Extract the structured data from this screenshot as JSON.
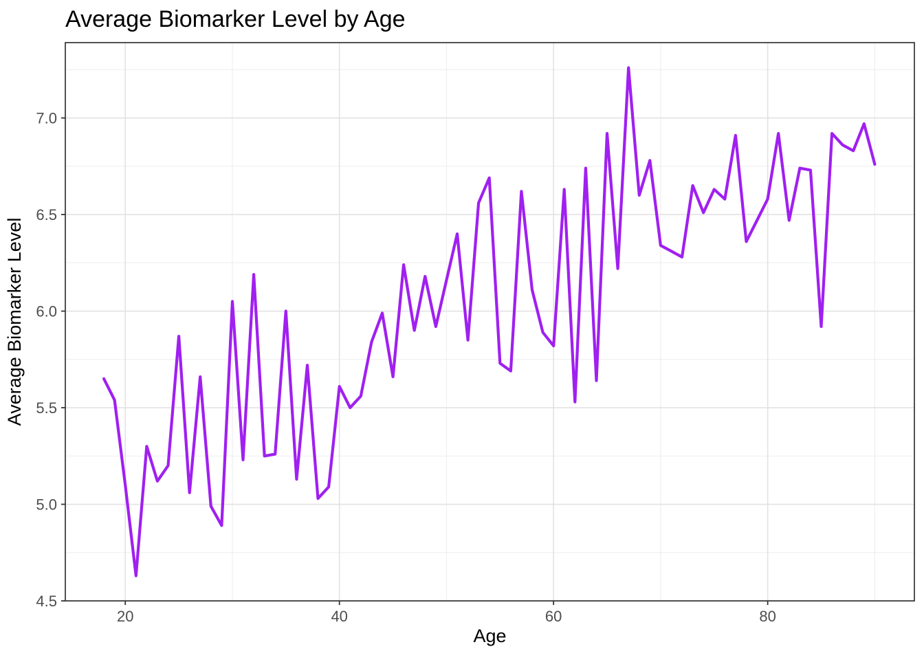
{
  "chart_data": {
    "type": "line",
    "title": "Average Biomarker Level by Age",
    "xlabel": "Age",
    "ylabel": "Average Biomarker Level",
    "x": [
      18,
      19,
      20,
      21,
      22,
      23,
      24,
      25,
      26,
      27,
      28,
      29,
      30,
      31,
      32,
      33,
      34,
      35,
      36,
      37,
      38,
      39,
      40,
      41,
      42,
      43,
      44,
      45,
      46,
      47,
      48,
      49,
      50,
      51,
      52,
      53,
      54,
      55,
      56,
      57,
      58,
      59,
      60,
      61,
      62,
      63,
      64,
      65,
      66,
      67,
      68,
      69,
      70,
      71,
      72,
      73,
      74,
      75,
      76,
      77,
      78,
      79,
      80,
      81,
      82,
      83,
      84,
      85,
      86,
      87,
      88,
      89,
      90
    ],
    "y": [
      5.65,
      5.54,
      5.1,
      4.63,
      5.3,
      5.12,
      5.2,
      5.87,
      5.06,
      5.66,
      4.99,
      4.89,
      6.05,
      5.23,
      6.19,
      5.25,
      5.26,
      6.0,
      5.13,
      5.72,
      5.03,
      5.09,
      5.61,
      5.5,
      5.56,
      5.84,
      5.99,
      5.66,
      6.24,
      5.9,
      6.18,
      5.92,
      6.16,
      6.4,
      5.85,
      6.56,
      6.69,
      5.73,
      5.69,
      6.62,
      6.11,
      5.89,
      5.82,
      6.63,
      5.53,
      6.74,
      5.64,
      6.92,
      6.22,
      7.26,
      6.6,
      6.78,
      6.34,
      6.31,
      6.28,
      6.65,
      6.51,
      6.63,
      6.58,
      6.91,
      6.36,
      6.47,
      6.58,
      6.92,
      6.47,
      6.74,
      6.73,
      5.92,
      6.92,
      6.86,
      6.83,
      6.97,
      6.76
    ],
    "xlim": [
      14.4,
      93.7
    ],
    "ylim": [
      4.5,
      7.39
    ],
    "x_major_ticks": {
      "values": [
        20,
        40,
        60,
        80
      ],
      "labels": [
        "20",
        "40",
        "60",
        "80"
      ]
    },
    "y_major_ticks": {
      "values": [
        4.5,
        5.0,
        5.5,
        6.0,
        6.5,
        7.0
      ],
      "labels": [
        "4.5",
        "5.0",
        "5.5",
        "6.0",
        "6.5",
        "7.0"
      ]
    },
    "x_minor_gridlines": [
      30,
      50,
      70,
      90
    ],
    "y_minor_gridlines": [
      4.75,
      5.25,
      5.75,
      6.25,
      6.75,
      7.25
    ],
    "grid": true,
    "legend_position": "none",
    "colors": {
      "line": "#A020F0",
      "background": "#FFFFFF",
      "panel_border": "#333333",
      "grid_major": "#E2E2E2",
      "grid_minor": "#EDEDED",
      "tick_label": "#4D4D4D",
      "tick_mark": "#333333",
      "title": "#000000",
      "axis_title": "#000000"
    }
  }
}
